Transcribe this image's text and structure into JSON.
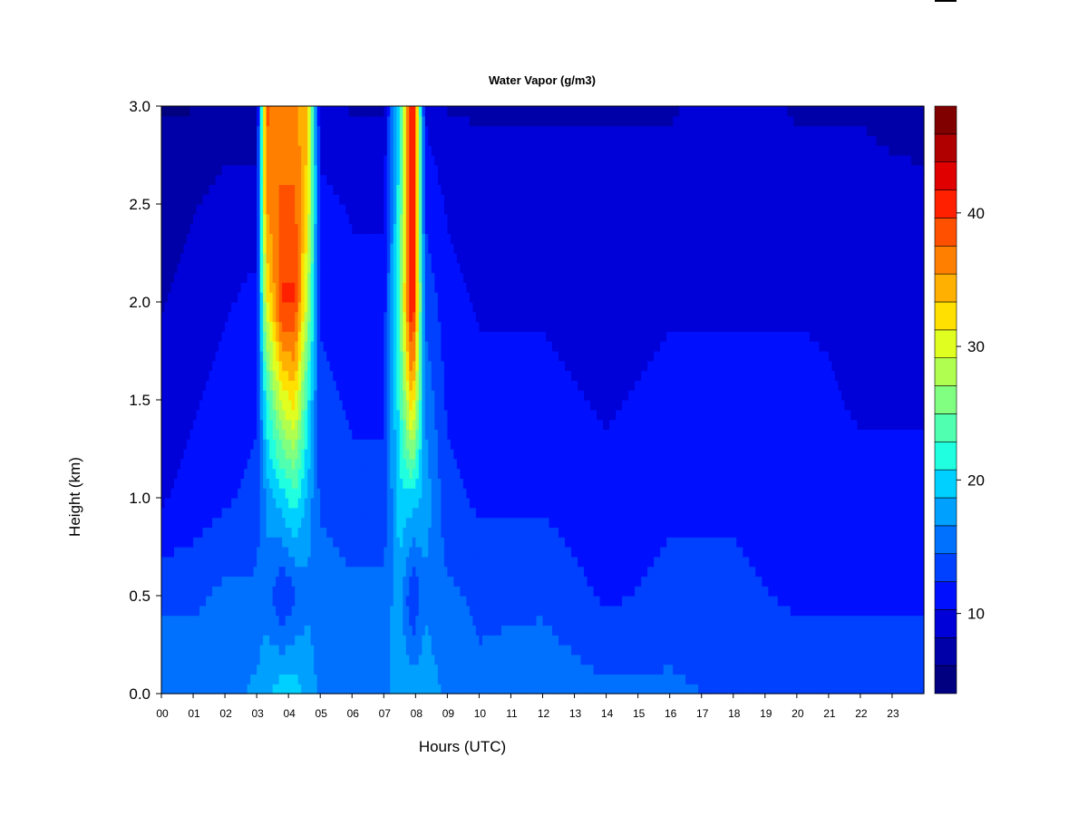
{
  "chart_data": {
    "type": "heatmap",
    "title": "Water Vapor (g/m3)",
    "xlabel": "Hours (UTC)",
    "ylabel": "Height (km)",
    "x_ticks": [
      "00",
      "01",
      "02",
      "03",
      "04",
      "05",
      "06",
      "07",
      "08",
      "09",
      "10",
      "11",
      "12",
      "13",
      "14",
      "15",
      "16",
      "17",
      "18",
      "19",
      "20",
      "21",
      "22",
      "23"
    ],
    "x_range": [
      0,
      24
    ],
    "y_ticks": [
      "0.0",
      "0.5",
      "1.0",
      "1.5",
      "2.0",
      "2.5",
      "3.0"
    ],
    "y_range": [
      0,
      3.0
    ],
    "colorbar": {
      "range": [
        4,
        48
      ],
      "ticks": [
        "10",
        "20",
        "30",
        "40"
      ],
      "tick_values": [
        10,
        20,
        30,
        40
      ],
      "levels": [
        4,
        6,
        8,
        10,
        12,
        14,
        16,
        18,
        20,
        22,
        24,
        26,
        28,
        30,
        32,
        34,
        36,
        38,
        40,
        42,
        44,
        46,
        48
      ],
      "colors": [
        "#000080",
        "#0000a8",
        "#0000d8",
        "#0010ff",
        "#0040ff",
        "#0070ff",
        "#00a0ff",
        "#00d0ff",
        "#20ffe0",
        "#50ffb0",
        "#80ff80",
        "#b0ff50",
        "#e0ff20",
        "#ffe000",
        "#ffb000",
        "#ff8000",
        "#ff5000",
        "#ff2000",
        "#e00000",
        "#b00000",
        "#800000"
      ]
    },
    "profile_heights_km": [
      0.0,
      0.5,
      1.0,
      1.5,
      2.0,
      2.5,
      3.0
    ],
    "columns": [
      {
        "hour": 0.0,
        "values": [
          16,
          14,
          10,
          9,
          8,
          7,
          6
        ]
      },
      {
        "hour": 1.0,
        "values": [
          16,
          14,
          11,
          10,
          9,
          8,
          6
        ]
      },
      {
        "hour": 2.0,
        "values": [
          16,
          15,
          12,
          11,
          10,
          9,
          7
        ]
      },
      {
        "hour": 3.0,
        "values": [
          17,
          15,
          13,
          12,
          11,
          9,
          7
        ]
      },
      {
        "hour": 3.3,
        "values": [
          18,
          16,
          17,
          22,
          30,
          36,
          38
        ]
      },
      {
        "hour": 3.8,
        "values": [
          20,
          12,
          20,
          30,
          40,
          38,
          36
        ]
      },
      {
        "hour": 4.2,
        "values": [
          20,
          14,
          22,
          32,
          40,
          38,
          36
        ]
      },
      {
        "hour": 4.6,
        "values": [
          18,
          16,
          18,
          22,
          28,
          32,
          34
        ]
      },
      {
        "hour": 5.0,
        "values": [
          16,
          16,
          14,
          13,
          12,
          11,
          9
        ]
      },
      {
        "hour": 6.0,
        "values": [
          16,
          15,
          13,
          12,
          11,
          10,
          8
        ]
      },
      {
        "hour": 7.0,
        "values": [
          16,
          15,
          13,
          12,
          11,
          10,
          8
        ]
      },
      {
        "hour": 7.5,
        "values": [
          18,
          18,
          20,
          22,
          24,
          22,
          22
        ]
      },
      {
        "hour": 7.9,
        "values": [
          18,
          12,
          20,
          34,
          44,
          44,
          44
        ]
      },
      {
        "hour": 8.3,
        "values": [
          18,
          16,
          18,
          16,
          14,
          12,
          10
        ]
      },
      {
        "hour": 9.0,
        "values": [
          16,
          15,
          13,
          12,
          11,
          10,
          8
        ]
      },
      {
        "hour": 10.0,
        "values": [
          15,
          14,
          12,
          11,
          10,
          9,
          8
        ]
      },
      {
        "hour": 12.0,
        "values": [
          16,
          14,
          12,
          11,
          10,
          9,
          8
        ]
      },
      {
        "hour": 14.0,
        "values": [
          15,
          12,
          11,
          10,
          9,
          9,
          8
        ]
      },
      {
        "hour": 16.0,
        "values": [
          15,
          13,
          12,
          11,
          10,
          9,
          8
        ]
      },
      {
        "hour": 18.0,
        "values": [
          14,
          13,
          12,
          11,
          10,
          10,
          9
        ]
      },
      {
        "hour": 20.0,
        "values": [
          14,
          12,
          11,
          11,
          10,
          9,
          8
        ]
      },
      {
        "hour": 22.0,
        "values": [
          14,
          12,
          11,
          10,
          10,
          9,
          8
        ]
      },
      {
        "hour": 24.0,
        "values": [
          14,
          12,
          11,
          10,
          9,
          9,
          7
        ]
      }
    ],
    "legend": "colorbar-right"
  }
}
